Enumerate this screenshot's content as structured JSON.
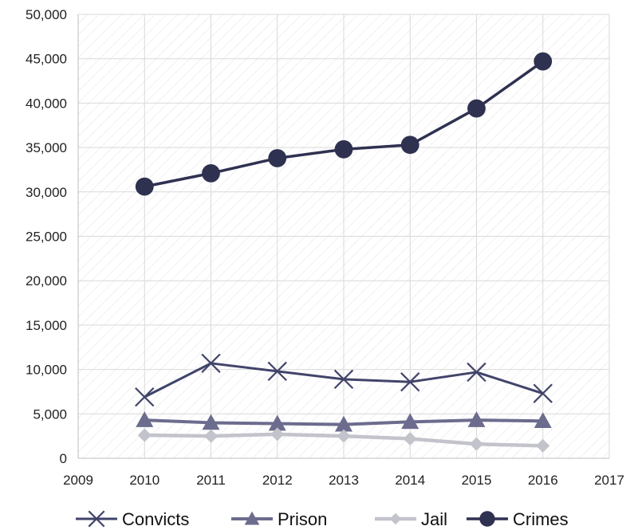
{
  "chart_data": {
    "type": "line",
    "title": "",
    "xlabel": "",
    "ylabel": "",
    "xlim": [
      2009,
      2017
    ],
    "ylim": [
      0,
      50000
    ],
    "x_ticks": [
      "2009",
      "2010",
      "2011",
      "2012",
      "2013",
      "2014",
      "2015",
      "2016",
      "2017"
    ],
    "y_ticks": [
      "0",
      "5,000",
      "10,000",
      "15,000",
      "20,000",
      "25,000",
      "30,000",
      "35,000",
      "40,000",
      "45,000",
      "50,000"
    ],
    "grid": true,
    "legend_position": "bottom",
    "x": [
      2010,
      2011,
      2012,
      2013,
      2014,
      2015,
      2016
    ],
    "series": [
      {
        "name": "Convicts",
        "marker": "x",
        "color": "#41446a",
        "values": [
          6900,
          10700,
          9800,
          8900,
          8600,
          9700,
          7300
        ]
      },
      {
        "name": "Prison",
        "marker": "triangle",
        "color": "#6c6c8e",
        "values": [
          4300,
          4000,
          3900,
          3800,
          4100,
          4300,
          4200
        ]
      },
      {
        "name": "Jail",
        "marker": "diamond",
        "color": "#c3c3cc",
        "values": [
          2600,
          2500,
          2700,
          2500,
          2200,
          1600,
          1400
        ]
      },
      {
        "name": "Crimes",
        "marker": "circle",
        "color": "#2f3151",
        "values": [
          30600,
          32100,
          33800,
          34800,
          35300,
          39400,
          44700
        ]
      }
    ]
  }
}
